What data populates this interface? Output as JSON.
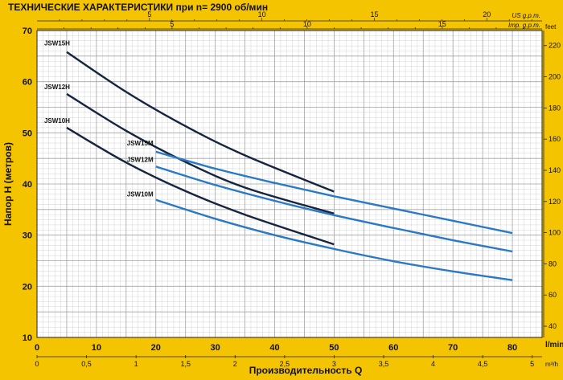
{
  "chart_data": {
    "type": "line",
    "title": "ТЕХНИЧЕСКИЕ ХАРАКТЕРИСТИКИ при n= 2900 об/мин",
    "xlabel": "Производительность Q",
    "ylabel": "Напор Н (метров)",
    "x_unit_label": "l/min",
    "x_secondary_unit_label": "m³/h",
    "y_right_unit_label": "feet",
    "top_us_label": "US g.p.m.",
    "top_imp_label": "Imp. g.p.m.",
    "xlim": [
      0,
      85
    ],
    "ylim": [
      10,
      70
    ],
    "grid": true,
    "x_ticks": [
      "0",
      "10",
      "20",
      "30",
      "40",
      "50",
      "60",
      "70",
      "80"
    ],
    "y_ticks": [
      "10",
      "20",
      "30",
      "40",
      "50",
      "60",
      "70"
    ],
    "m3h_ticks": [
      "0",
      "0,5",
      "1",
      "1,5",
      "2",
      "2,5",
      "3",
      "3,5",
      "4",
      "4,5",
      "5"
    ],
    "feet_ticks": [
      "40",
      "60",
      "80",
      "100",
      "120",
      "140",
      "160",
      "180",
      "200",
      "220"
    ],
    "us_gpm_ticks": [
      "5",
      "10",
      "15",
      "20"
    ],
    "imp_gpm_ticks": [
      "5",
      "10",
      "15",
      "20"
    ],
    "colors": {
      "background": "#f5c400",
      "plot_bg": "#ffffff",
      "grid": "#9a9a9a",
      "dark_series": "#16243f",
      "blue_series": "#2a79c4"
    },
    "series": [
      {
        "name": "JSW15H",
        "color": "#16243f",
        "x": [
          5,
          15,
          25,
          35,
          50
        ],
        "y": [
          65.8,
          58.0,
          51.3,
          45.6,
          38.5
        ]
      },
      {
        "name": "JSW12H",
        "color": "#16243f",
        "x": [
          5,
          15,
          25,
          35,
          50
        ],
        "y": [
          57.6,
          50.4,
          44.3,
          39.3,
          34.2
        ]
      },
      {
        "name": "JSW10H",
        "color": "#16243f",
        "x": [
          5,
          15,
          25,
          35,
          50
        ],
        "y": [
          51.0,
          44.2,
          38.6,
          34.0,
          28.2
        ]
      },
      {
        "name": "JSW15M",
        "color": "#2a79c4",
        "x": [
          20,
          30,
          40,
          50,
          60,
          70,
          80
        ],
        "y": [
          46.3,
          43.0,
          40.2,
          37.6,
          35.2,
          32.8,
          30.4
        ]
      },
      {
        "name": "JSW12M",
        "color": "#2a79c4",
        "x": [
          20,
          30,
          40,
          50,
          60,
          70,
          80
        ],
        "y": [
          43.4,
          39.8,
          36.7,
          33.9,
          31.4,
          29.0,
          26.8
        ]
      },
      {
        "name": "JSW10M",
        "color": "#2a79c4",
        "x": [
          20,
          30,
          40,
          50,
          60,
          70,
          80
        ],
        "y": [
          36.9,
          33.2,
          30.0,
          27.3,
          24.9,
          22.9,
          21.2
        ]
      }
    ]
  }
}
